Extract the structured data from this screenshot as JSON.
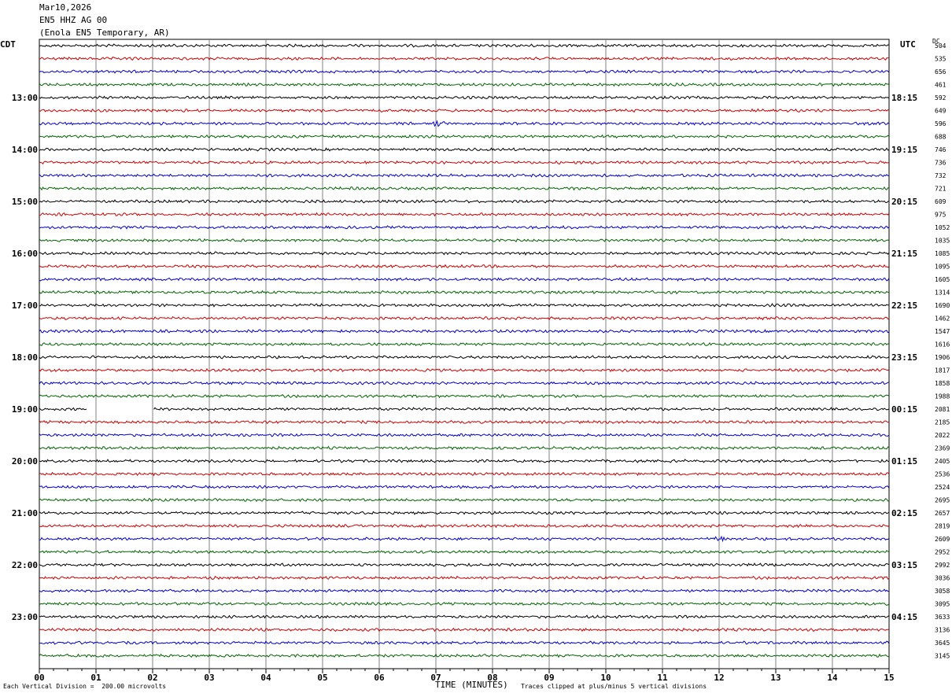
{
  "header": {
    "date": "Mar10,2026",
    "channel": "EN5 HHZ AG 00",
    "station": "(Enola EN5 Temporary, AR)"
  },
  "left_tz": "CDT",
  "right_tz": "UTC",
  "dc_label": "DC",
  "footer": {
    "scale_note": "Each Vertical Division =  200.00 microvolts",
    "xlabel": "TIME (MINUTES)",
    "clip_note": "Traces clipped at plus/minus 5 vertical divisions"
  },
  "colors": {
    "trace_cycle": [
      "#000000",
      "#cc0000",
      "#0000cc",
      "#006600"
    ],
    "grid": "#808080"
  },
  "chart_data": {
    "type": "line",
    "title": "",
    "xlabel": "TIME (MINUTES)",
    "xlim": [
      0,
      15
    ],
    "x_ticks": [
      "00",
      "01",
      "02",
      "03",
      "04",
      "05",
      "06",
      "07",
      "08",
      "09",
      "10",
      "11",
      "12",
      "13",
      "14",
      "15"
    ],
    "traces_per_hour": 4,
    "hours_left": [
      "13:00",
      "14:00",
      "15:00",
      "16:00",
      "17:00",
      "18:00",
      "19:00",
      "20:00",
      "21:00",
      "22:00",
      "23:00"
    ],
    "hours_right": [
      "18:15",
      "19:15",
      "20:15",
      "21:15",
      "22:15",
      "23:15",
      "00:15",
      "01:15",
      "02:15",
      "03:15",
      "04:15"
    ],
    "dc_offsets": [
      "504",
      "535",
      "656",
      "461",
      "592",
      "649",
      "596",
      "688",
      "746",
      "736",
      "732",
      "721",
      "609",
      "975",
      "1052",
      "1035",
      "1085",
      "1095",
      "1605",
      "1314",
      "1690",
      "1462",
      "1547",
      "1616",
      "1906",
      "1817",
      "1858",
      "1988",
      "2081",
      "2185",
      "2022",
      "2369",
      "2405",
      "2536",
      "2524",
      "2695",
      "2657",
      "2819",
      "2609",
      "2952",
      "2992",
      "3036",
      "3058",
      "3095",
      "3633",
      "3136",
      "3645",
      "3145"
    ],
    "gaps": [
      {
        "trace": 28,
        "from_minute": 0.85,
        "to_minute": 2.0
      }
    ],
    "events": [
      {
        "trace": 6,
        "minute": 7.05,
        "amplitude": 2.5
      },
      {
        "trace": 38,
        "minute": 12.0,
        "amplitude": 3.0
      },
      {
        "trace": 39,
        "minute": 11.2,
        "amplitude": 2.0
      }
    ]
  }
}
